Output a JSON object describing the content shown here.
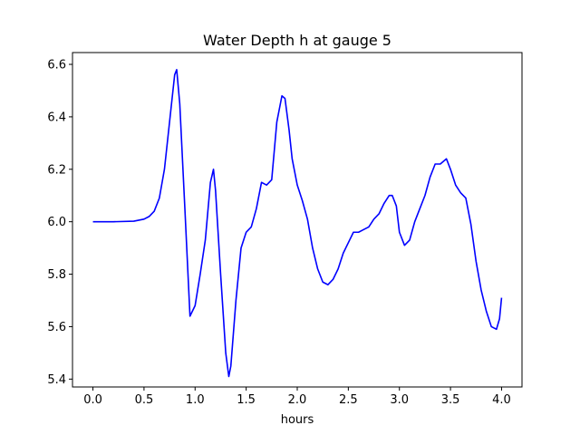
{
  "chart_data": {
    "type": "line",
    "title": "Water Depth h at gauge 5",
    "xlabel": "hours",
    "ylabel": "",
    "xlim": [
      -0.2,
      4.2
    ],
    "ylim": [
      5.37,
      6.645
    ],
    "x_ticks": [
      0.0,
      0.5,
      1.0,
      1.5,
      2.0,
      2.5,
      3.0,
      3.5,
      4.0
    ],
    "x_tick_labels": [
      "0.0",
      "0.5",
      "1.0",
      "1.5",
      "2.0",
      "2.5",
      "3.0",
      "3.5",
      "4.0"
    ],
    "y_ticks": [
      5.4,
      5.6,
      5.8,
      6.0,
      6.2,
      6.4,
      6.6
    ],
    "y_tick_labels": [
      "5.4",
      "5.6",
      "5.8",
      "6.0",
      "6.2",
      "6.4",
      "6.6"
    ],
    "grid": false,
    "series": [
      {
        "color": "#0000ff",
        "x": [
          0.0,
          0.2,
          0.4,
          0.5,
          0.55,
          0.6,
          0.65,
          0.7,
          0.75,
          0.8,
          0.82,
          0.85,
          0.9,
          0.95,
          1.0,
          1.05,
          1.1,
          1.15,
          1.18,
          1.2,
          1.25,
          1.3,
          1.33,
          1.35,
          1.4,
          1.45,
          1.5,
          1.55,
          1.6,
          1.65,
          1.7,
          1.75,
          1.8,
          1.85,
          1.88,
          1.92,
          1.95,
          2.0,
          2.05,
          2.1,
          2.15,
          2.2,
          2.25,
          2.3,
          2.35,
          2.4,
          2.45,
          2.5,
          2.55,
          2.6,
          2.65,
          2.7,
          2.75,
          2.8,
          2.85,
          2.9,
          2.93,
          2.97,
          3.0,
          3.05,
          3.1,
          3.15,
          3.2,
          3.25,
          3.3,
          3.35,
          3.4,
          3.43,
          3.46,
          3.5,
          3.55,
          3.6,
          3.65,
          3.7,
          3.75,
          3.8,
          3.85,
          3.9,
          3.95,
          3.98,
          4.0
        ],
        "y": [
          6.0,
          6.0,
          6.002,
          6.01,
          6.02,
          6.04,
          6.09,
          6.2,
          6.38,
          6.56,
          6.58,
          6.45,
          6.05,
          5.64,
          5.68,
          5.8,
          5.93,
          6.15,
          6.2,
          6.12,
          5.8,
          5.5,
          5.41,
          5.45,
          5.7,
          5.9,
          5.96,
          5.98,
          6.05,
          6.15,
          6.14,
          6.16,
          6.38,
          6.48,
          6.47,
          6.35,
          6.24,
          6.14,
          6.08,
          6.01,
          5.9,
          5.82,
          5.77,
          5.76,
          5.78,
          5.82,
          5.88,
          5.92,
          5.96,
          5.96,
          5.97,
          5.98,
          6.01,
          6.03,
          6.07,
          6.1,
          6.1,
          6.06,
          5.96,
          5.91,
          5.93,
          6.0,
          6.05,
          6.1,
          6.17,
          6.22,
          6.22,
          6.23,
          6.24,
          6.2,
          6.14,
          6.11,
          6.09,
          5.99,
          5.85,
          5.74,
          5.66,
          5.6,
          5.59,
          5.63,
          5.71
        ]
      }
    ]
  }
}
